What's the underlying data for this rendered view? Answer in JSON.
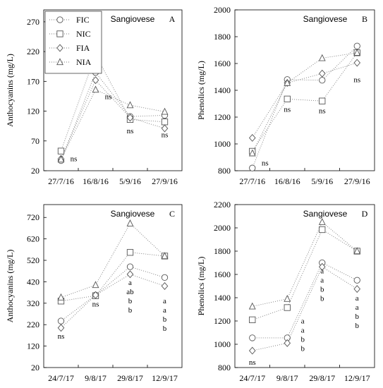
{
  "legend": {
    "items": [
      {
        "label": "FIC",
        "marker": "circle"
      },
      {
        "label": "NIC",
        "marker": "square"
      },
      {
        "label": "FIA",
        "marker": "diamond"
      },
      {
        "label": "NIA",
        "marker": "triangle"
      }
    ]
  },
  "chart_data": [
    {
      "panel": "A",
      "type": "line",
      "title": "Sangiovese",
      "ylabel": "Anthocyanins (mg/L)",
      "ylim": [
        20,
        290
      ],
      "yticks": [
        20,
        70,
        120,
        170,
        220,
        270
      ],
      "categories": [
        "27/7/16",
        "16/8/16",
        "5/9/16",
        "27/9/16"
      ],
      "series": [
        {
          "name": "FIC",
          "marker": "circle",
          "values": [
            37,
            185,
            111,
            113
          ]
        },
        {
          "name": "NIC",
          "marker": "square",
          "values": [
            53,
            215,
            106,
            102
          ]
        },
        {
          "name": "FIA",
          "marker": "diamond",
          "values": [
            40,
            172,
            109,
            91
          ]
        },
        {
          "name": "NIA",
          "marker": "triangle",
          "values": [
            39,
            156,
            130,
            119
          ]
        }
      ],
      "annotations": [
        {
          "category_index": 0,
          "lines": [
            "ns"
          ],
          "y": 36,
          "dx": 18
        },
        {
          "category_index": 1,
          "lines": [
            "ns"
          ],
          "y": 140,
          "dx": 18
        },
        {
          "category_index": 2,
          "lines": [
            "ns"
          ],
          "y": 83,
          "dx": 0
        },
        {
          "category_index": 3,
          "lines": [
            "ns"
          ],
          "y": 76,
          "dx": 0
        }
      ]
    },
    {
      "panel": "B",
      "type": "line",
      "title": "Sangiovese",
      "ylabel": "Phenolics (mg/L)",
      "ylim": [
        800,
        2000
      ],
      "yticks": [
        800,
        1000,
        1200,
        1400,
        1600,
        1800,
        2000
      ],
      "categories": [
        "27/7/16",
        "16/8/16",
        "5/9/16",
        "27/9/16"
      ],
      "series": [
        {
          "name": "FIC",
          "marker": "circle",
          "values": [
            820,
            1480,
            1475,
            1730
          ]
        },
        {
          "name": "NIC",
          "marker": "square",
          "values": [
            945,
            1335,
            1320,
            1680
          ]
        },
        {
          "name": "FIA",
          "marker": "diamond",
          "values": [
            1045,
            1455,
            1525,
            1605
          ]
        },
        {
          "name": "NIA",
          "marker": "triangle",
          "values": [
            930,
            1455,
            1640,
            1680
          ]
        }
      ],
      "annotations": [
        {
          "category_index": 0,
          "lines": [
            "ns"
          ],
          "y": 840,
          "dx": 18
        },
        {
          "category_index": 1,
          "lines": [
            "ns"
          ],
          "y": 1240,
          "dx": 0
        },
        {
          "category_index": 2,
          "lines": [
            "ns"
          ],
          "y": 1230,
          "dx": 0
        },
        {
          "category_index": 3,
          "lines": [
            "ns"
          ],
          "y": 1460,
          "dx": 0
        }
      ]
    },
    {
      "panel": "C",
      "type": "line",
      "title": "Sangiovese",
      "ylabel": "Anthocyanins (mg/L)",
      "ylim": [
        20,
        780
      ],
      "yticks": [
        20,
        120,
        220,
        320,
        420,
        520,
        620,
        720
      ],
      "categories": [
        "24/7/17",
        "9/8/17",
        "29/8/17",
        "12/9/17"
      ],
      "series": [
        {
          "name": "FIC",
          "marker": "circle",
          "values": [
            237,
            358,
            490,
            440
          ]
        },
        {
          "name": "NIC",
          "marker": "square",
          "values": [
            330,
            355,
            557,
            540
          ]
        },
        {
          "name": "FIA",
          "marker": "diamond",
          "values": [
            205,
            358,
            455,
            400
          ]
        },
        {
          "name": "NIA",
          "marker": "triangle",
          "values": [
            347,
            405,
            692,
            540
          ]
        }
      ],
      "annotations": [
        {
          "category_index": 0,
          "lines": [
            "ns"
          ],
          "y": 155,
          "dx": 0
        },
        {
          "category_index": 1,
          "lines": [
            "ns"
          ],
          "y": 305,
          "dx": 0
        },
        {
          "category_index": 2,
          "lines": [
            "a",
            "ab",
            "b",
            "b"
          ],
          "y": 405,
          "dx": 0
        },
        {
          "category_index": 3,
          "lines": [
            "a",
            "a",
            "b",
            "b"
          ],
          "y": 320,
          "dx": 0
        }
      ]
    },
    {
      "panel": "D",
      "type": "line",
      "title": "Sangiovese",
      "ylabel": "Phenolics (mg/L)",
      "ylim": [
        800,
        2200
      ],
      "yticks": [
        800,
        1000,
        1200,
        1400,
        1600,
        1800,
        2000,
        2200
      ],
      "categories": [
        "24/7/17",
        "9/8/17",
        "29/8/17",
        "12/9/17"
      ],
      "series": [
        {
          "name": "FIC",
          "marker": "circle",
          "values": [
            1055,
            1055,
            1700,
            1550
          ]
        },
        {
          "name": "NIC",
          "marker": "square",
          "values": [
            1210,
            1315,
            1985,
            1800
          ]
        },
        {
          "name": "FIA",
          "marker": "diamond",
          "values": [
            945,
            1010,
            1665,
            1475
          ]
        },
        {
          "name": "NIA",
          "marker": "triangle",
          "values": [
            1325,
            1390,
            2050,
            1800
          ]
        }
      ],
      "annotations": [
        {
          "category_index": 0,
          "lines": [
            "ns"
          ],
          "y": 825,
          "dx": 0
        },
        {
          "category_index": 1,
          "lines": [
            "a",
            "a",
            "b",
            "b"
          ],
          "y": 1180,
          "dx": 22
        },
        {
          "category_index": 2,
          "lines": [
            "a",
            "a",
            "b",
            "b"
          ],
          "y": 1610,
          "dx": 0
        },
        {
          "category_index": 3,
          "lines": [
            "a",
            "a",
            "b",
            "b"
          ],
          "y": 1375,
          "dx": 0
        }
      ]
    }
  ]
}
